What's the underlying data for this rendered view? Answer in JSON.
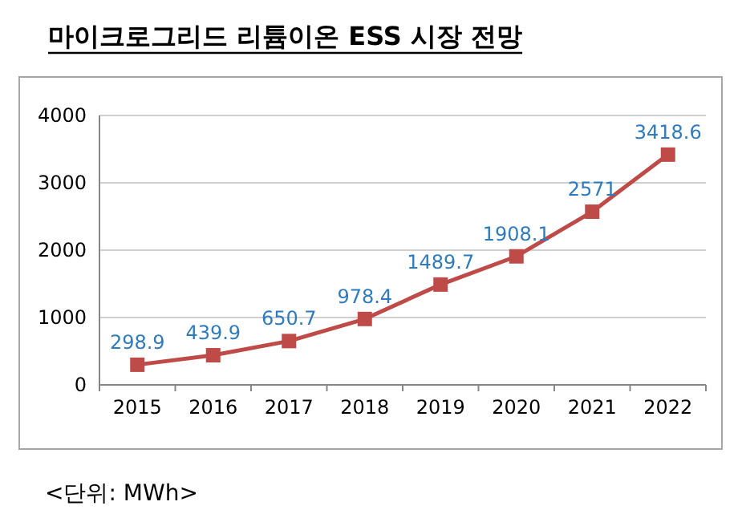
{
  "chart_data": {
    "type": "line",
    "title": "마이크로그리드 리튬이온 ESS 시장 전망",
    "annotations": [
      "<단위: MWh>"
    ],
    "categories": [
      "2015",
      "2016",
      "2017",
      "2018",
      "2019",
      "2020",
      "2021",
      "2022"
    ],
    "series": [
      {
        "color": "#be4b48",
        "values": [
          298.9,
          439.9,
          650.7,
          978.4,
          1489.7,
          1908.1,
          2571,
          3418.6
        ]
      }
    ],
    "ylim": [
      0,
      4000
    ],
    "yticks": [
      0,
      1000,
      2000,
      3000,
      4000
    ],
    "grid": "y",
    "marker": "square",
    "line_style": "solid",
    "data_labels": true
  }
}
